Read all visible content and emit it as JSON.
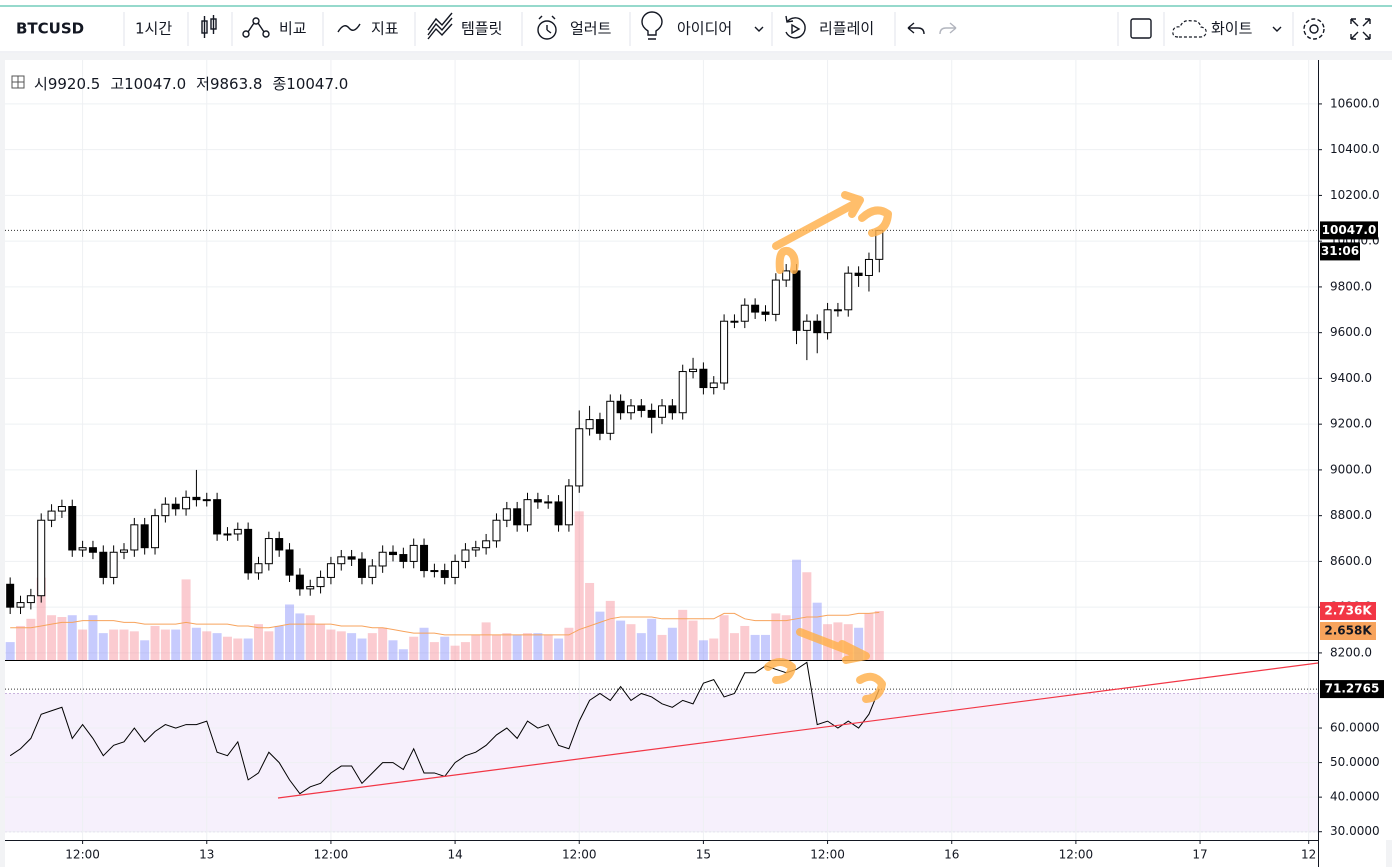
{
  "toolbar": {
    "symbol": "BTCUSD",
    "interval": "1시간",
    "compare": "비교",
    "indicators": "지표",
    "templates": "템플릿",
    "alert": "얼러트",
    "ideas": "아이디어",
    "replay": "리플레이",
    "theme": "화이트"
  },
  "legend": {
    "open_label": "시",
    "open": "9920.5",
    "high_label": "고",
    "high": "10047.0",
    "low_label": "저",
    "low": "9863.8",
    "close_label": "종",
    "close": "10047.0"
  },
  "chart_data": {
    "type": "candlestick",
    "symbol": "BTCUSD",
    "xlim": [
      -0.5,
      126.4
    ],
    "xticks": [
      {
        "value": 7,
        "label": "12:00"
      },
      {
        "value": 19,
        "label": "13"
      },
      {
        "value": 31,
        "label": "12:00"
      },
      {
        "value": 43,
        "label": "14"
      },
      {
        "value": 55,
        "label": "12:00"
      },
      {
        "value": 67,
        "label": "15"
      },
      {
        "value": 79,
        "label": "12:00"
      },
      {
        "value": 91,
        "label": "16"
      },
      {
        "value": 103,
        "label": "12:00"
      },
      {
        "value": 115,
        "label": "17"
      },
      {
        "value": 125.5,
        "label": "12"
      }
    ],
    "ylim": [
      8169,
      10792
    ],
    "yticks": [
      {
        "value": 8200,
        "label": "8200.0"
      },
      {
        "value": 8400,
        "label": "8400.0"
      },
      {
        "value": 8600,
        "label": "8600.0"
      },
      {
        "value": 8800,
        "label": "8800.0"
      },
      {
        "value": 9000,
        "label": "9000.0"
      },
      {
        "value": 9200,
        "label": "9200.0"
      },
      {
        "value": 9400,
        "label": "9400.0"
      },
      {
        "value": 9600,
        "label": "9600.0"
      },
      {
        "value": 9800,
        "label": "9800.0"
      },
      {
        "value": 10000,
        "label": "10000.0"
      },
      {
        "value": 10200,
        "label": "10200.0"
      },
      {
        "value": 10400,
        "label": "10400.0"
      },
      {
        "value": 10600,
        "label": "10600.0"
      }
    ],
    "open": [
      8500,
      8400,
      8420,
      8450,
      8780,
      8820,
      8840,
      8650,
      8660,
      8640,
      8530,
      8640,
      8650,
      8760,
      8660,
      8800,
      8850,
      8830,
      8880,
      8870,
      8870,
      8720,
      8720,
      8740,
      8550,
      8590,
      8700,
      8650,
      8540,
      8480,
      8490,
      8530,
      8590,
      8620,
      8610,
      8530,
      8580,
      8640,
      8630,
      8600,
      8670,
      8560,
      8560,
      8530,
      8600,
      8650,
      8660,
      8690,
      8780,
      8830,
      8760,
      8870,
      8860,
      8860,
      8760,
      8930,
      9180,
      9220,
      9160,
      9300,
      9250,
      9280,
      9260,
      9230,
      9280,
      9250,
      9430,
      9440,
      9360,
      9380,
      9650,
      9650,
      9720,
      9690,
      9680,
      9830,
      9870,
      9610,
      9650,
      9600,
      9700,
      9700,
      9860,
      9850,
      9920.5
    ],
    "high": [
      8530,
      8450,
      8480,
      8810,
      8850,
      8870,
      8870,
      8690,
      8690,
      8670,
      8670,
      8680,
      8790,
      8790,
      8830,
      8880,
      8880,
      8910,
      9000,
      8900,
      8900,
      8750,
      8770,
      8770,
      8620,
      8730,
      8730,
      8680,
      8570,
      8520,
      8560,
      8620,
      8650,
      8650,
      8640,
      8610,
      8670,
      8670,
      8660,
      8700,
      8700,
      8590,
      8590,
      8630,
      8680,
      8690,
      8720,
      8810,
      8860,
      8860,
      8900,
      8900,
      8890,
      8890,
      8960,
      9260,
      9280,
      9250,
      9330,
      9330,
      9310,
      9310,
      9290,
      9310,
      9310,
      9460,
      9490,
      9470,
      9410,
      9680,
      9680,
      9750,
      9750,
      9720,
      9860,
      9900,
      9900,
      9680,
      9680,
      9730,
      9730,
      9890,
      9890,
      9950,
      10047
    ],
    "low": [
      8370,
      8370,
      8390,
      8420,
      8750,
      8790,
      8620,
      8620,
      8610,
      8500,
      8500,
      8610,
      8620,
      8630,
      8630,
      8770,
      8800,
      8800,
      8840,
      8840,
      8690,
      8690,
      8690,
      8520,
      8520,
      8560,
      8620,
      8510,
      8450,
      8450,
      8460,
      8500,
      8560,
      8580,
      8500,
      8500,
      8550,
      8600,
      8570,
      8570,
      8530,
      8530,
      8500,
      8500,
      8570,
      8620,
      8630,
      8660,
      8750,
      8730,
      8730,
      8830,
      8830,
      8730,
      8730,
      8900,
      9150,
      9130,
      9130,
      9220,
      9220,
      9230,
      9160,
      9200,
      9220,
      9220,
      9400,
      9330,
      9330,
      9350,
      9620,
      9620,
      9660,
      9650,
      9650,
      9800,
      9550,
      9480,
      9510,
      9570,
      9670,
      9670,
      9800,
      9780,
      9863.8
    ],
    "close": [
      8400,
      8420,
      8450,
      8780,
      8820,
      8840,
      8650,
      8660,
      8640,
      8530,
      8640,
      8650,
      8760,
      8660,
      8800,
      8850,
      8830,
      8880,
      8870,
      8870,
      8720,
      8720,
      8740,
      8550,
      8590,
      8700,
      8650,
      8540,
      8480,
      8490,
      8530,
      8590,
      8620,
      8610,
      8530,
      8580,
      8640,
      8630,
      8600,
      8670,
      8560,
      8560,
      8530,
      8600,
      8650,
      8660,
      8690,
      8780,
      8830,
      8760,
      8870,
      8860,
      8860,
      8760,
      8930,
      9180,
      9220,
      9160,
      9300,
      9250,
      9280,
      9260,
      9230,
      9280,
      9250,
      9430,
      9440,
      9360,
      9380,
      9650,
      9650,
      9720,
      9690,
      9680,
      9830,
      9870,
      9610,
      9650,
      9600,
      9700,
      9700,
      9860,
      9850,
      9920,
      10047
    ],
    "last_price": {
      "value": 10047,
      "label": "10047.0"
    },
    "countdown": "31:06",
    "vlim": [
      0,
      33.5
    ],
    "volume": [
      1.0,
      1.9,
      2.3,
      4.6,
      2.5,
      2.4,
      2.5,
      1.7,
      2.5,
      1.5,
      1.7,
      1.7,
      1.6,
      1.1,
      1.9,
      1.7,
      1.7,
      4.5,
      1.8,
      1.6,
      1.5,
      1.3,
      1.2,
      1.2,
      2.0,
      1.6,
      1.9,
      3.1,
      2.6,
      2.5,
      2.0,
      1.7,
      1.6,
      1.5,
      1.2,
      1.5,
      1.8,
      1.1,
      0.6,
      1.3,
      1.8,
      1.0,
      1.3,
      0.8,
      1.0,
      1.4,
      2.1,
      1.4,
      1.5,
      1.4,
      1.5,
      1.5,
      1.4,
      1.2,
      1.8,
      8.3,
      4.3,
      2.7,
      3.3,
      2.2,
      2.0,
      1.5,
      2.3,
      1.4,
      1.8,
      2.8,
      2.2,
      1.1,
      1.2,
      2.5,
      1.5,
      1.9,
      1.4,
      1.4,
      2.6,
      2.5,
      5.6,
      4.9,
      3.2,
      2.0,
      2.1,
      2.0,
      1.8,
      2.6,
      2.736
    ],
    "volume_label": "2.736K",
    "volume_ma": [
      1.8,
      1.8,
      1.8,
      1.9,
      2.0,
      2.1,
      2.1,
      2.2,
      2.2,
      2.2,
      2.2,
      2.1,
      2.1,
      2.0,
      2.0,
      2.0,
      2.0,
      2.1,
      2.0,
      2.0,
      2.0,
      2.0,
      1.9,
      1.9,
      1.8,
      1.8,
      1.9,
      2.0,
      2.0,
      2.0,
      2.0,
      2.0,
      1.9,
      1.9,
      1.9,
      1.8,
      1.8,
      1.7,
      1.6,
      1.5,
      1.5,
      1.5,
      1.4,
      1.4,
      1.4,
      1.4,
      1.4,
      1.4,
      1.4,
      1.4,
      1.4,
      1.4,
      1.4,
      1.4,
      1.4,
      1.7,
      1.9,
      2.1,
      2.3,
      2.4,
      2.4,
      2.4,
      2.4,
      2.3,
      2.3,
      2.3,
      2.3,
      2.3,
      2.3,
      2.6,
      2.6,
      2.3,
      2.2,
      2.2,
      2.2,
      2.2,
      2.3,
      2.4,
      2.4,
      2.5,
      2.5,
      2.5,
      2.6,
      2.6,
      2.658
    ],
    "volume_ma_label": "2.658K",
    "rsi_lim": [
      27.6,
      79.4
    ],
    "rsi_ticks": [
      {
        "value": 30,
        "label": "30.0000"
      },
      {
        "value": 40,
        "label": "40.0000"
      },
      {
        "value": 50,
        "label": "50.0000"
      },
      {
        "value": 60,
        "label": "60.0000"
      }
    ],
    "rsi_band": [
      30,
      70
    ],
    "rsi": [
      52,
      54,
      57,
      64,
      65,
      66,
      57,
      61,
      57,
      52,
      55,
      56,
      60,
      56,
      59,
      61,
      60,
      61,
      61,
      62,
      53,
      52,
      56,
      45,
      47,
      53,
      50,
      45,
      41,
      43,
      44,
      47,
      49,
      49,
      44,
      47,
      50,
      50,
      48,
      54,
      47,
      47,
      46,
      50,
      52,
      53,
      55,
      58,
      60,
      57,
      62,
      60,
      61,
      55,
      54,
      62,
      68,
      70,
      68,
      72,
      68,
      70,
      69,
      67,
      66,
      68,
      67,
      73,
      74,
      69,
      70,
      76,
      76,
      78,
      77,
      76,
      77,
      79,
      61,
      62,
      60,
      62,
      60,
      64,
      71.2765
    ],
    "rsi_label": "71.2765",
    "grid": true
  }
}
